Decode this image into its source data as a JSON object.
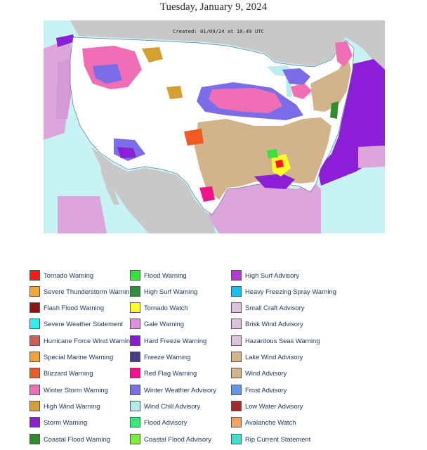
{
  "page": {
    "title": "Tuesday, January 9, 2024"
  },
  "map": {
    "created_stamp": "Created: 01/09/24 at 10:49 UTC",
    "colors": {
      "ocean": "#c9f2f4",
      "land": "#ffffff",
      "canada_mexico": "#c8c8c8",
      "great_lakes": "#b9ecf0"
    }
  },
  "legend": {
    "columns": [
      [
        {
          "label": "Tornado Warning",
          "color": "#ff1a1a"
        },
        {
          "label": "Severe Thunderstorm Warning",
          "color": "#f2a73b"
        },
        {
          "label": "Flash Flood Warning",
          "color": "#8b1515"
        },
        {
          "label": "Severe Weather Statement",
          "color": "#33f0f0"
        },
        {
          "label": "Hurricane Force Wind Warning",
          "color": "#cd5c5c"
        },
        {
          "label": "Special Marine Warning",
          "color": "#f2a13b"
        },
        {
          "label": "Blizzard Warning",
          "color": "#f05a23"
        },
        {
          "label": "Winter Storm Warning",
          "color": "#f06fb4"
        },
        {
          "label": "High Wind Warning",
          "color": "#d5a033"
        },
        {
          "label": "Storm Warning",
          "color": "#8a1fd6"
        },
        {
          "label": "Coastal Flood Warning",
          "color": "#2e8b2e"
        }
      ],
      [
        {
          "label": "Flood Warning",
          "color": "#3ce03c"
        },
        {
          "label": "High Surf Warning",
          "color": "#2f8f3a"
        },
        {
          "label": "Tornado Watch",
          "color": "#ffff2a"
        },
        {
          "label": "Gale Warning",
          "color": "#db8fdc"
        },
        {
          "label": "Hard Freeze Warning",
          "color": "#8a1ad2"
        },
        {
          "label": "Freeze Warning",
          "color": "#4a3a8a"
        },
        {
          "label": "Red Flag Warning",
          "color": "#f0148c"
        },
        {
          "label": "Winter Weather Advisory",
          "color": "#7b6ce8"
        },
        {
          "label": "Wind Chill Advisory",
          "color": "#b3eaea"
        },
        {
          "label": "Flood Advisory",
          "color": "#33ef7a"
        },
        {
          "label": "Coastal Flood Advisory",
          "color": "#7cf03c"
        }
      ],
      [
        {
          "label": "High Surf Advisory",
          "color": "#b53ad6"
        },
        {
          "label": "Heavy Freezing Spray Warning",
          "color": "#1ebef0"
        },
        {
          "label": "Small Craft Advisory",
          "color": "#dcc3dc"
        },
        {
          "label": "Brisk Wind Advisory",
          "color": "#dcc3dc"
        },
        {
          "label": "Hazardous Seas Warning",
          "color": "#dcc3dc"
        },
        {
          "label": "Lake Wind Advisory",
          "color": "#d2b48c"
        },
        {
          "label": "Wind Advisory",
          "color": "#d2b48c"
        },
        {
          "label": "Frost Advisory",
          "color": "#6495ed"
        },
        {
          "label": "Low Water Advisory",
          "color": "#a52a2a"
        },
        {
          "label": "Avalanche Watch",
          "color": "#f4a460"
        },
        {
          "label": "Rip Current Statement",
          "color": "#40e0d0"
        }
      ]
    ]
  }
}
